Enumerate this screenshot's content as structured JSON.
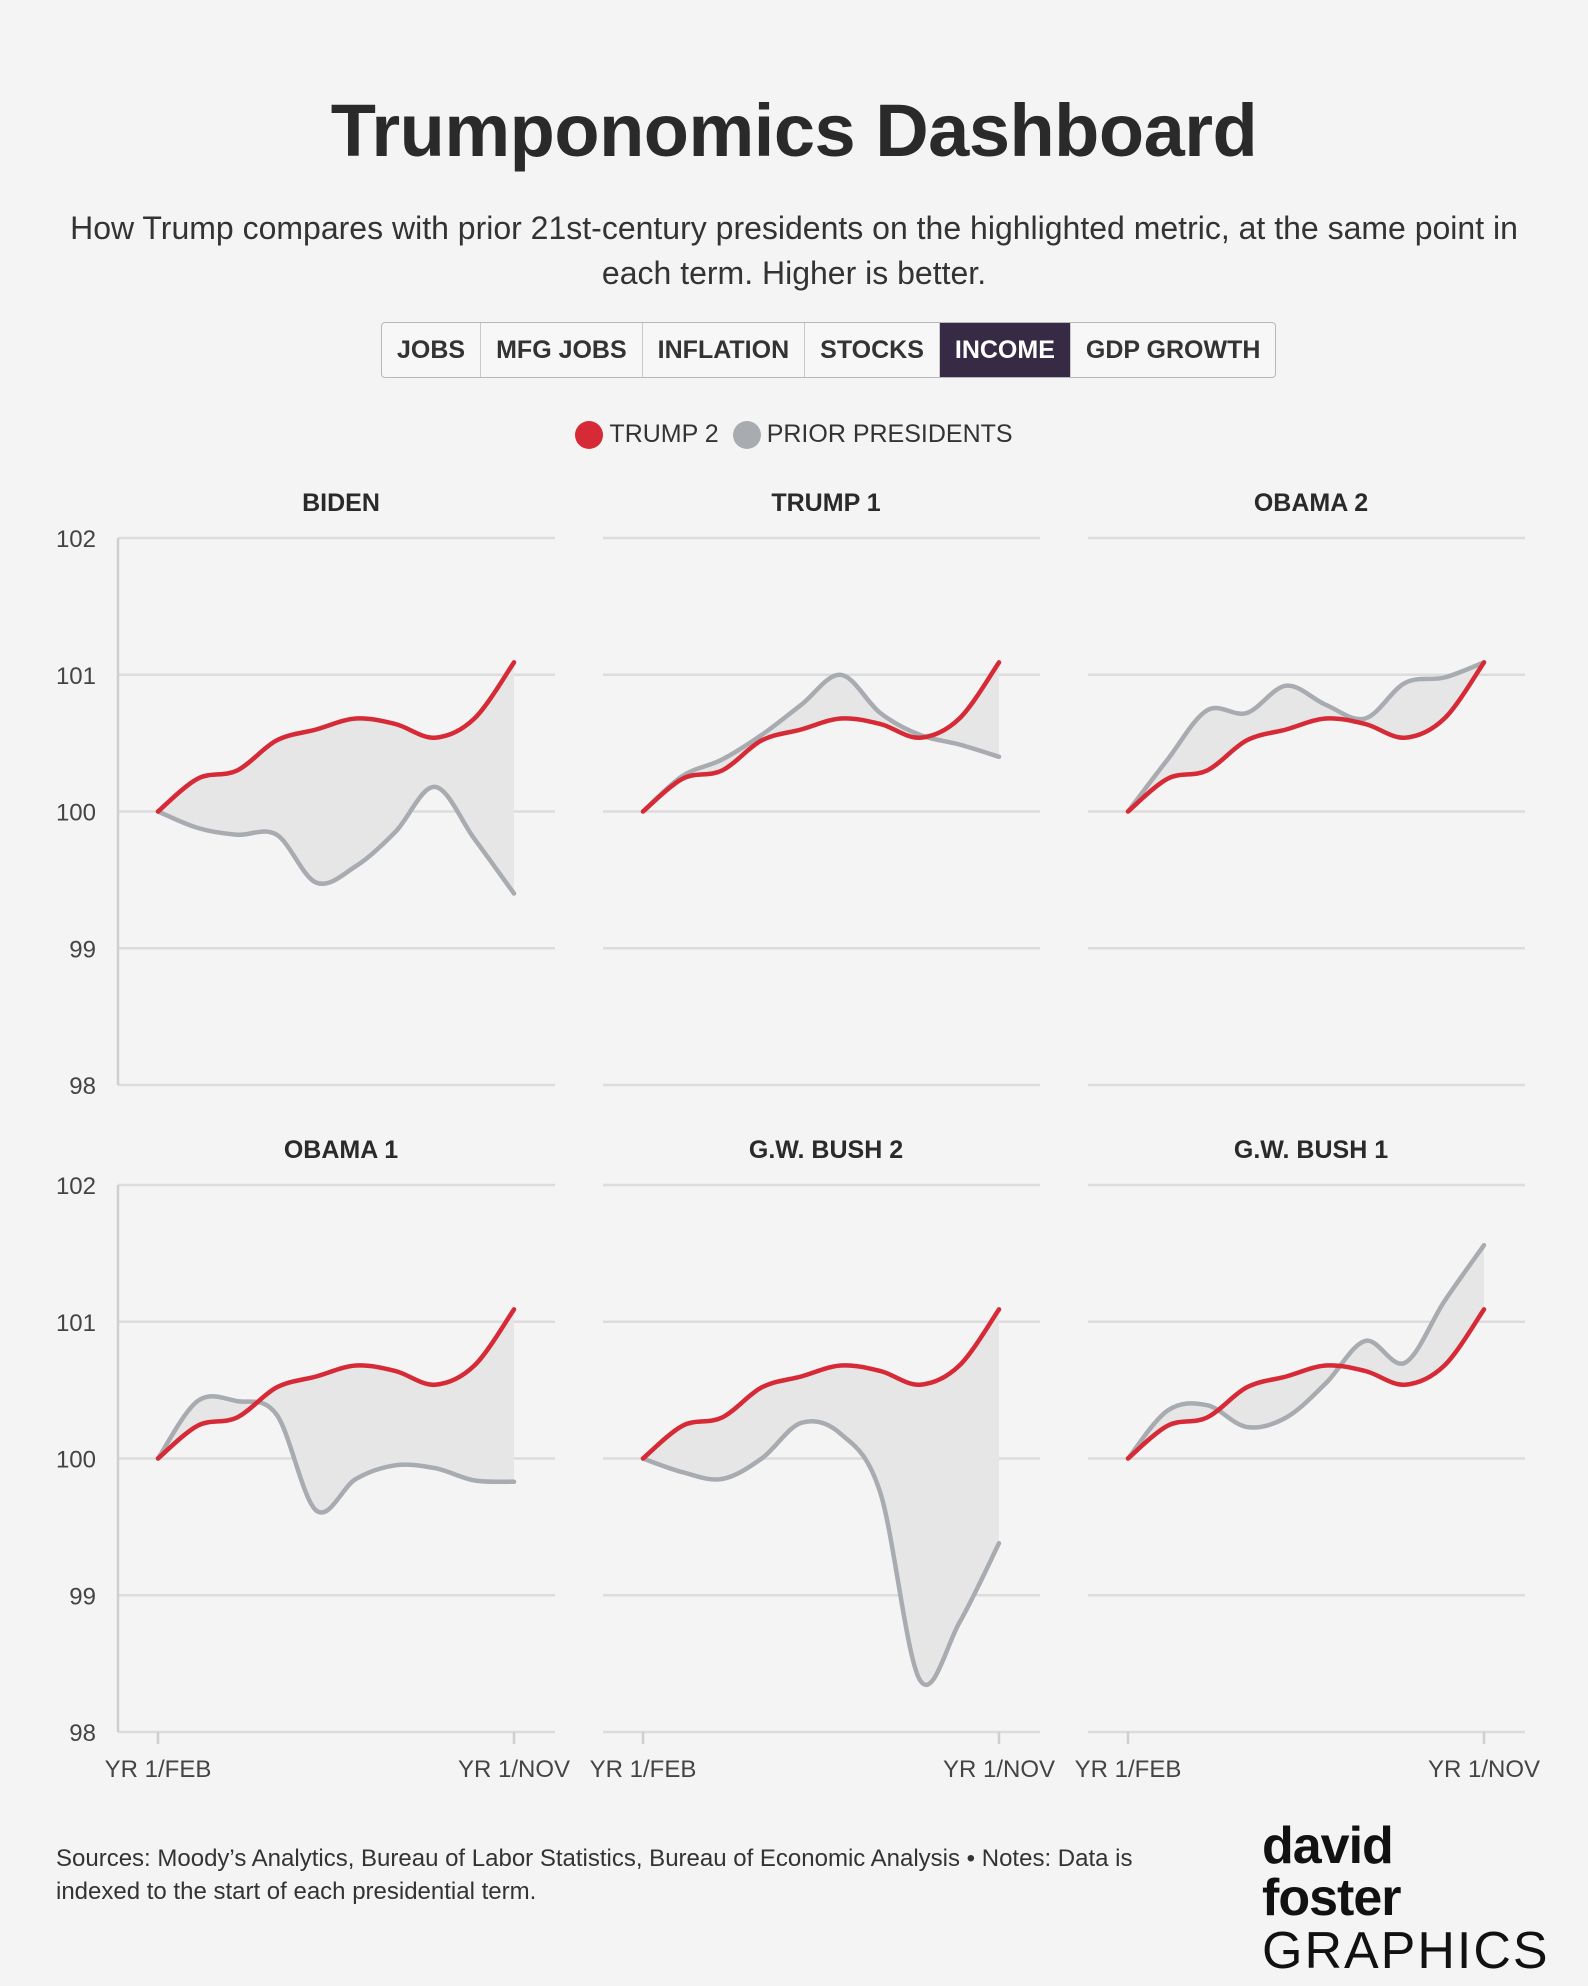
{
  "title": "Trumponomics Dashboard",
  "subtitle": "How Trump compares with prior 21st-century presidents on the highlighted metric, at the same point in each term. Higher is better.",
  "tabs": [
    {
      "label": "JOBS",
      "active": false
    },
    {
      "label": "MFG JOBS",
      "active": false
    },
    {
      "label": "INFLATION",
      "active": false
    },
    {
      "label": "STOCKS",
      "active": false
    },
    {
      "label": "INCOME",
      "active": true
    },
    {
      "label": "GDP GROWTH",
      "active": false
    }
  ],
  "legend": [
    {
      "label": "TRUMP 2",
      "color": "#d62a36"
    },
    {
      "label": "PRIOR PRESIDENTS",
      "color": "#a8abb0"
    }
  ],
  "colors": {
    "trump": "#d62a36",
    "prior": "#a8abb0",
    "fill": "#e6e6e6",
    "grid": "#dcdcdc",
    "axis": "#cfcfcf"
  },
  "chart_data": [
    {
      "type": "line",
      "title": "BIDEN",
      "x_labels": [
        "YR 1/FEB",
        "YR 1/NOV"
      ],
      "ylim": [
        98,
        102
      ],
      "yticks": [
        98,
        99,
        100,
        101,
        102
      ],
      "series": [
        {
          "name": "Trump 2",
          "values": [
            100,
            100.24,
            100.3,
            100.52,
            100.6,
            100.68,
            100.64,
            100.54,
            100.68,
            101.09
          ]
        },
        {
          "name": "Biden",
          "values": [
            100,
            99.88,
            99.83,
            99.83,
            99.48,
            99.6,
            99.85,
            100.18,
            99.8,
            99.4
          ]
        }
      ]
    },
    {
      "type": "line",
      "title": "TRUMP 1",
      "x_labels": [
        "YR 1/FEB",
        "YR 1/NOV"
      ],
      "ylim": [
        98,
        102
      ],
      "yticks": [
        98,
        99,
        100,
        101,
        102
      ],
      "series": [
        {
          "name": "Trump 2",
          "values": [
            100,
            100.24,
            100.3,
            100.52,
            100.6,
            100.68,
            100.64,
            100.54,
            100.68,
            101.09
          ]
        },
        {
          "name": "Trump 1",
          "values": [
            100,
            100.26,
            100.38,
            100.56,
            100.78,
            101.0,
            100.72,
            100.56,
            100.49,
            100.4
          ]
        }
      ]
    },
    {
      "type": "line",
      "title": "OBAMA 2",
      "x_labels": [
        "YR 1/FEB",
        "YR 1/NOV"
      ],
      "ylim": [
        98,
        102
      ],
      "yticks": [
        98,
        99,
        100,
        101,
        102
      ],
      "series": [
        {
          "name": "Trump 2",
          "values": [
            100,
            100.24,
            100.3,
            100.52,
            100.6,
            100.68,
            100.64,
            100.54,
            100.68,
            101.09
          ]
        },
        {
          "name": "Obama 2",
          "values": [
            100,
            100.38,
            100.74,
            100.72,
            100.92,
            100.78,
            100.68,
            100.94,
            100.98,
            101.09
          ]
        }
      ]
    },
    {
      "type": "line",
      "title": "OBAMA 1",
      "x_labels": [
        "YR 1/FEB",
        "YR 1/NOV"
      ],
      "ylim": [
        98,
        102
      ],
      "yticks": [
        98,
        99,
        100,
        101,
        102
      ],
      "series": [
        {
          "name": "Trump 2",
          "values": [
            100,
            100.24,
            100.3,
            100.52,
            100.6,
            100.68,
            100.64,
            100.54,
            100.68,
            101.09
          ]
        },
        {
          "name": "Obama 1",
          "values": [
            100,
            100.42,
            100.42,
            100.32,
            99.62,
            99.85,
            99.95,
            99.93,
            99.84,
            99.83
          ]
        }
      ]
    },
    {
      "type": "line",
      "title": "G.W. BUSH 2",
      "x_labels": [
        "YR 1/FEB",
        "YR 1/NOV"
      ],
      "ylim": [
        98,
        102
      ],
      "yticks": [
        98,
        99,
        100,
        101,
        102
      ],
      "series": [
        {
          "name": "Trump 2",
          "values": [
            100,
            100.24,
            100.3,
            100.52,
            100.6,
            100.68,
            100.64,
            100.54,
            100.68,
            101.09
          ]
        },
        {
          "name": "G.W. Bush 2",
          "values": [
            100,
            99.9,
            99.85,
            100.0,
            100.26,
            100.18,
            99.75,
            98.38,
            98.8,
            99.38
          ]
        }
      ]
    },
    {
      "type": "line",
      "title": "G.W. BUSH 1",
      "x_labels": [
        "YR 1/FEB",
        "YR 1/NOV"
      ],
      "ylim": [
        98,
        102
      ],
      "yticks": [
        98,
        99,
        100,
        101,
        102
      ],
      "series": [
        {
          "name": "Trump 2",
          "values": [
            100,
            100.24,
            100.3,
            100.52,
            100.6,
            100.68,
            100.64,
            100.54,
            100.68,
            101.09
          ]
        },
        {
          "name": "G.W. Bush 1",
          "values": [
            100,
            100.35,
            100.39,
            100.23,
            100.3,
            100.55,
            100.86,
            100.7,
            101.15,
            101.56
          ]
        }
      ]
    }
  ],
  "footer": "Sources: Moody’s Analytics, Bureau of Labor Statistics, Bureau of Economic Analysis • Notes: Data is indexed to the start of each presidential term.",
  "logo": {
    "top": "david foster",
    "bottom": "GRAPHICS"
  }
}
